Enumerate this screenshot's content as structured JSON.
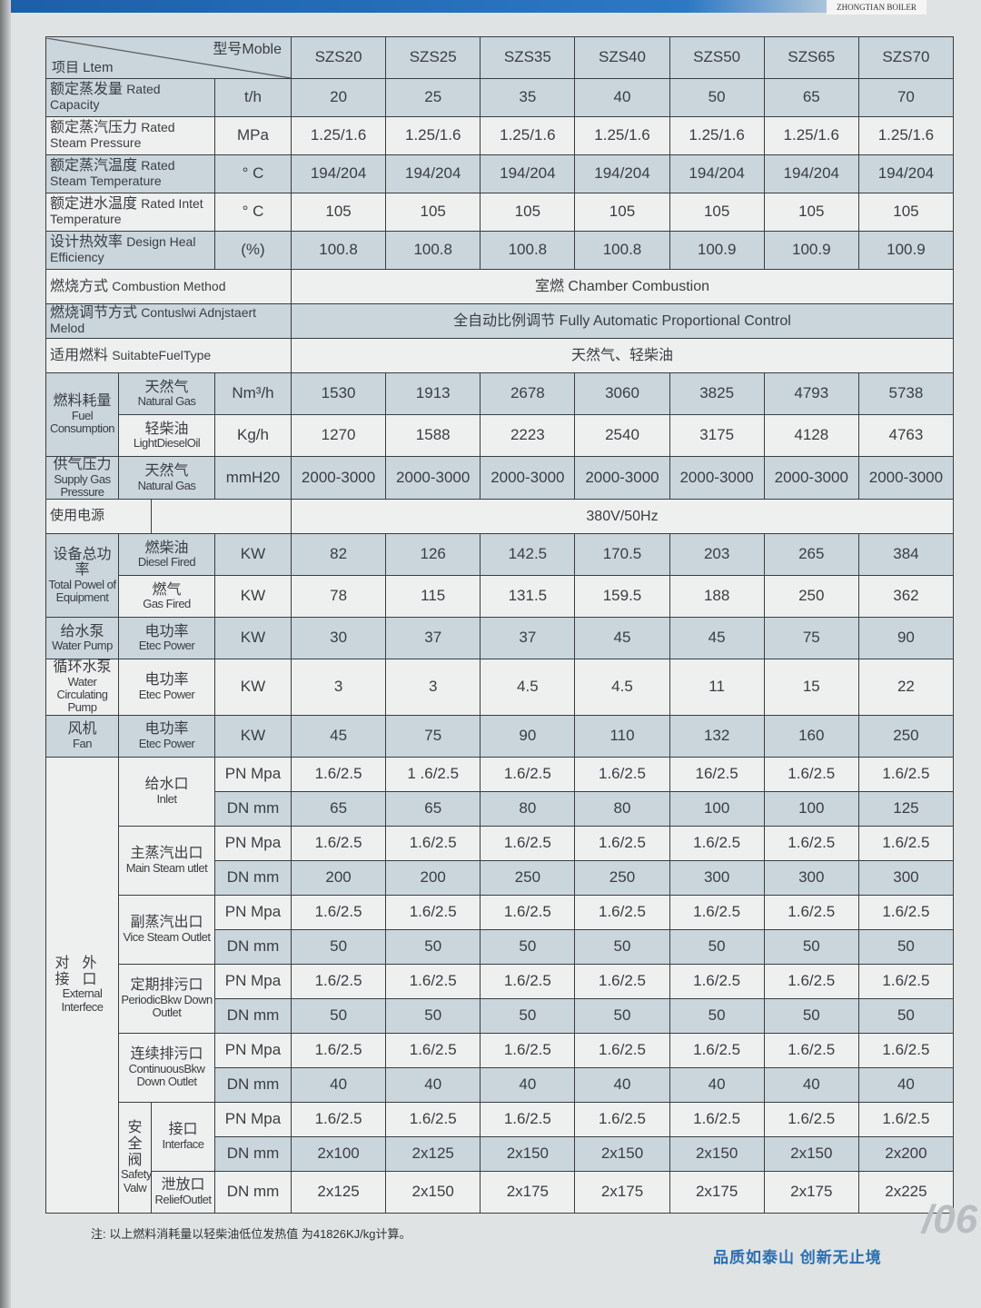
{
  "brand": "ZHONGTIAN BOILER",
  "header": {
    "model_label": "型号Moble",
    "item_label": "项目 Ltem",
    "models": [
      "SZS20",
      "SZS25",
      "SZS35",
      "SZS40",
      "SZS50",
      "SZS65",
      "SZS70"
    ]
  },
  "spec_rows": [
    {
      "cn": "额定蒸发量",
      "en": "Rated Capacity",
      "unit": "t/h",
      "values": [
        "20",
        "25",
        "35",
        "40",
        "50",
        "65",
        "70"
      ]
    },
    {
      "cn": "额定蒸汽压力",
      "en": "Rated Steam Pressure",
      "unit": "MPa",
      "values": [
        "1.25/1.6",
        "1.25/1.6",
        "1.25/1.6",
        "1.25/1.6",
        "1.25/1.6",
        "1.25/1.6",
        "1.25/1.6"
      ]
    },
    {
      "cn": "额定蒸汽温度",
      "en": "Rated Steam Temperature",
      "unit": "° C",
      "values": [
        "194/204",
        "194/204",
        "194/204",
        "194/204",
        "194/204",
        "194/204",
        "194/204"
      ]
    },
    {
      "cn": "额定进水温度",
      "en": "Rated Intet Temperature",
      "unit": "° C",
      "values": [
        "105",
        "105",
        "105",
        "105",
        "105",
        "105",
        "105"
      ]
    },
    {
      "cn": "设计热效率",
      "en": "Design Heal Efficiency",
      "unit": "(%)",
      "values": [
        "100.8",
        "100.8",
        "100.8",
        "100.8",
        "100.9",
        "100.9",
        "100.9"
      ]
    }
  ],
  "merged_rows": [
    {
      "cn": "燃烧方式",
      "en": "Combustion Method",
      "value": "室燃 Chamber Combustion"
    },
    {
      "cn": "燃烧调节方式",
      "en": "Contuslwi Adnjstaert Melod",
      "value": "全自动比例调节 Fully Automatic Proportional Control"
    },
    {
      "cn": "适用燃料",
      "en": "SuitabteFuelType",
      "value": "天然气、轻柴油"
    }
  ],
  "fuel_consumption": {
    "cn": "燃料耗量",
    "en": "Fuel Consumption",
    "rows": [
      {
        "cn": "天然气",
        "en": "Natural Gas",
        "unit": "Nm³/h",
        "values": [
          "1530",
          "1913",
          "2678",
          "3060",
          "3825",
          "4793",
          "5738"
        ]
      },
      {
        "cn": "轻柴油",
        "en": "LightDieselOil",
        "unit": "Kg/h",
        "values": [
          "1270",
          "1588",
          "2223",
          "2540",
          "3175",
          "4128",
          "4763"
        ]
      }
    ]
  },
  "gas_pressure": {
    "cn": "供气压力",
    "en": "Supply Gas Pressure",
    "rows": [
      {
        "cn": "天然气",
        "en": "Natural Gas",
        "unit": "mmH20",
        "values": [
          "2000-3000",
          "2000-3000",
          "2000-3000",
          "2000-3000",
          "2000-3000",
          "2000-3000",
          "2000-3000"
        ]
      }
    ]
  },
  "power_supply": {
    "cn": "使用电源",
    "value": "380V/50Hz"
  },
  "equipment_power": {
    "cn": "设备总功率",
    "en": "Total Powel of Equipment",
    "rows": [
      {
        "cn": "燃柴油",
        "en": "Diesel Fired",
        "unit": "KW",
        "values": [
          "82",
          "126",
          "142.5",
          "170.5",
          "203",
          "265",
          "384"
        ]
      },
      {
        "cn": "燃气",
        "en": "Gas Fired",
        "unit": "KW",
        "values": [
          "78",
          "115",
          "131.5",
          "159.5",
          "188",
          "250",
          "362"
        ]
      }
    ]
  },
  "pumps": [
    {
      "cn": "给水泵",
      "en": "Water Pump",
      "rows": [
        {
          "cn": "电功率",
          "en": "Etec Power",
          "unit": "KW",
          "values": [
            "30",
            "37",
            "37",
            "45",
            "45",
            "75",
            "90"
          ]
        }
      ]
    },
    {
      "cn": "循环水泵",
      "en": "Water Circulating Pump",
      "rows": [
        {
          "cn": "电功率",
          "en": "Etec Power",
          "unit": "KW",
          "values": [
            "3",
            "3",
            "4.5",
            "4.5",
            "11",
            "15",
            "22"
          ]
        }
      ]
    },
    {
      "cn": "风机",
      "en": "Fan",
      "rows": [
        {
          "cn": "电功率",
          "en": "Etec Power",
          "unit": "KW",
          "values": [
            "45",
            "75",
            "90",
            "110",
            "132",
            "160",
            "250"
          ]
        }
      ]
    }
  ],
  "external": {
    "cn": "对外接口",
    "en": "External Interfece",
    "groups": [
      {
        "cn": "给水口",
        "en": "Inlet",
        "rows": [
          {
            "unit": "PN Mpa",
            "values": [
              "1.6/2.5",
              "1 .6/2.5",
              "1.6/2.5",
              "1.6/2.5",
              "16/2.5",
              "1.6/2.5",
              "1.6/2.5"
            ]
          },
          {
            "unit": "DN mm",
            "values": [
              "65",
              "65",
              "80",
              "80",
              "100",
              "100",
              "125"
            ]
          }
        ]
      },
      {
        "cn": "主蒸汽出口",
        "en": "Main Steam utlet",
        "rows": [
          {
            "unit": "PN Mpa",
            "values": [
              "1.6/2.5",
              "1.6/2.5",
              "1.6/2.5",
              "1.6/2.5",
              "1.6/2.5",
              "1.6/2.5",
              "1.6/2.5"
            ]
          },
          {
            "unit": "DN mm",
            "values": [
              "200",
              "200",
              "250",
              "250",
              "300",
              "300",
              "300"
            ]
          }
        ]
      },
      {
        "cn": "副蒸汽出口",
        "en": "Vice Steam Outlet",
        "rows": [
          {
            "unit": "PN Mpa",
            "values": [
              "1.6/2.5",
              "1.6/2.5",
              "1.6/2.5",
              "1.6/2.5",
              "1.6/2.5",
              "1.6/2.5",
              "1.6/2.5"
            ]
          },
          {
            "unit": "DN mm",
            "values": [
              "50",
              "50",
              "50",
              "50",
              "50",
              "50",
              "50"
            ]
          }
        ]
      },
      {
        "cn": "定期排污口",
        "en": "PeriodicBkw Down Outlet",
        "rows": [
          {
            "unit": "PN Mpa",
            "values": [
              "1.6/2.5",
              "1.6/2.5",
              "1.6/2.5",
              "1.6/2.5",
              "1.6/2.5",
              "1.6/2.5",
              "1.6/2.5"
            ]
          },
          {
            "unit": "DN mm",
            "values": [
              "50",
              "50",
              "50",
              "50",
              "50",
              "50",
              "50"
            ]
          }
        ]
      },
      {
        "cn": "连续排污口",
        "en": "ContinuousBkw Down Outlet",
        "rows": [
          {
            "unit": "PN Mpa",
            "values": [
              "1.6/2.5",
              "1.6/2.5",
              "1.6/2.5",
              "1.6/2.5",
              "1.6/2.5",
              "1.6/2.5",
              "1.6/2.5"
            ]
          },
          {
            "unit": "DN mm",
            "values": [
              "40",
              "40",
              "40",
              "40",
              "40",
              "40",
              "40"
            ]
          }
        ]
      }
    ],
    "safety": {
      "cn": "安全阀",
      "en": "Safety Valw",
      "subs": [
        {
          "cn": "接口",
          "en": "Interface",
          "rows": [
            {
              "unit": "PN Mpa",
              "values": [
                "1.6/2.5",
                "1.6/2.5",
                "1.6/2.5",
                "1.6/2.5",
                "1.6/2.5",
                "1.6/2.5",
                "1.6/2.5"
              ]
            },
            {
              "unit": "DN mm",
              "values": [
                "2x100",
                "2x125",
                "2x150",
                "2x150",
                "2x150",
                "2x150",
                "2x200"
              ]
            }
          ]
        },
        {
          "cn": "泄放口",
          "en": "ReliefOutlet",
          "rows": [
            {
              "unit": "DN mm",
              "values": [
                "2x125",
                "2x150",
                "2x175",
                "2x175",
                "2x175",
                "2x175",
                "2x225"
              ]
            }
          ]
        }
      ]
    }
  },
  "note": "注: 以上燃料消耗量以轻柴油低位发热值 为41826KJ/kg计算。",
  "slogan": "品质如泰山  创新无止境",
  "page_number": "/06"
}
